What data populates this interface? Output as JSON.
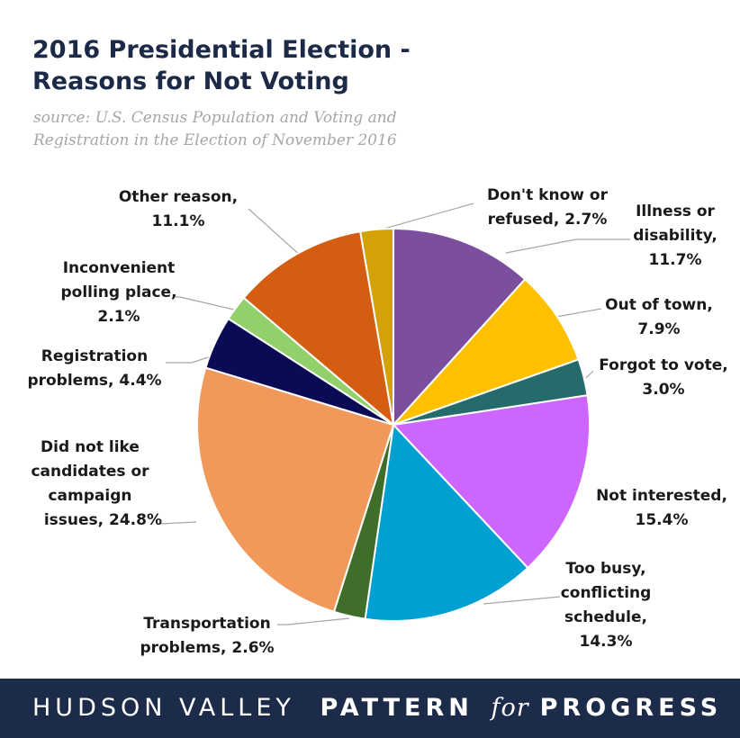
{
  "title": "2016 Presidential Election - Reasons for Not Voting",
  "subtitle": "source: U.S. Census Population and Voting and Registration in the Election of November 2016",
  "chart_data": {
    "type": "pie",
    "title": "2016 Presidential Election - Reasons for Not Voting",
    "slices": [
      {
        "label": "Illness or disability",
        "value": 11.7,
        "value_label": "11.7%",
        "color": "#7b4f9d"
      },
      {
        "label": "Out of town",
        "value": 7.9,
        "value_label": "7.9%",
        "color": "#ffc000"
      },
      {
        "label": "Forgot to vote",
        "value": 3.0,
        "value_label": "3.0%",
        "color": "#266b6b"
      },
      {
        "label": "Not interested",
        "value": 15.4,
        "value_label": "15.4%",
        "color": "#cc66ff"
      },
      {
        "label": "Too busy, conflicting schedule",
        "value": 14.3,
        "value_label": "14.3%",
        "color": "#00a0d2"
      },
      {
        "label": "Transportation problems",
        "value": 2.6,
        "value_label": "2.6%",
        "color": "#3f6e2b"
      },
      {
        "label": "Did not like candidates or campaign issues",
        "value": 24.8,
        "value_label": "24.8%",
        "color": "#f0995b"
      },
      {
        "label": "Registration problems",
        "value": 4.4,
        "value_label": "4.4%",
        "color": "#0b0b55"
      },
      {
        "label": "Inconvenient polling place",
        "value": 2.1,
        "value_label": "2.1%",
        "color": "#92d06b"
      },
      {
        "label": "Other reason",
        "value": 11.1,
        "value_label": "11.1%",
        "color": "#d45d12"
      },
      {
        "label": "Don't know or refused",
        "value": 2.7,
        "value_label": "2.7%",
        "color": "#d4a106"
      }
    ]
  },
  "labels": {
    "illness": [
      "Illness or",
      "disability,",
      "11.7%"
    ],
    "out_of_town": [
      "Out of town,",
      "7.9%"
    ],
    "forgot": [
      "Forgot to vote,",
      "3.0%"
    ],
    "not_interested": [
      "Not interested,",
      "15.4%"
    ],
    "too_busy": [
      "Too busy,",
      "conflicting",
      "schedule,",
      "14.3%"
    ],
    "transportation": [
      "Transportation",
      "problems, 2.6%"
    ],
    "did_not_like": [
      "Did not like",
      "candidates or",
      "campaign",
      "issues, 24.8%"
    ],
    "registration": [
      "Registration",
      "problems, 4.4%"
    ],
    "inconvenient": [
      "Inconvenient",
      "polling place,",
      "2.1%"
    ],
    "other": [
      "Other reason,",
      "11.1%"
    ],
    "dont_know": [
      "Don't know or",
      "refused, 2.7%"
    ]
  },
  "footer": {
    "part1": "HUDSON VALLEY",
    "part2": "PATTERN",
    "part3": "for",
    "part4": "PROGRESS"
  }
}
